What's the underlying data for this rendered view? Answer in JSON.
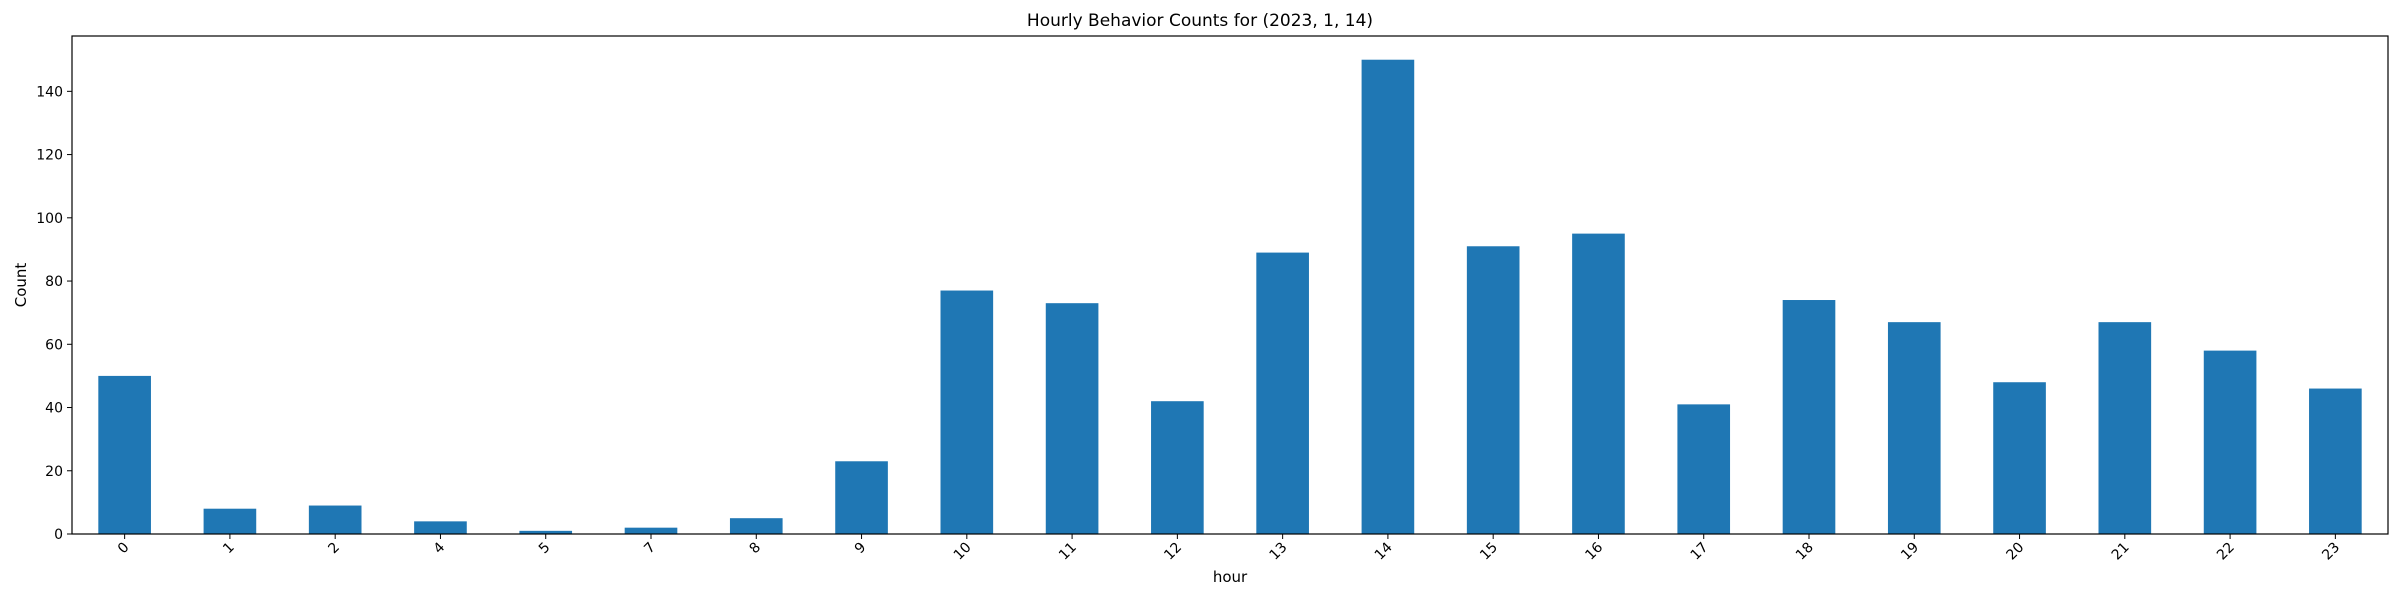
{
  "chart_data": {
    "type": "bar",
    "title": "Hourly Behavior Counts for (2023, 1, 14)",
    "xlabel": "hour",
    "ylabel": "Count",
    "categories": [
      "0",
      "1",
      "2",
      "4",
      "5",
      "7",
      "8",
      "9",
      "10",
      "11",
      "12",
      "13",
      "14",
      "15",
      "16",
      "17",
      "18",
      "19",
      "20",
      "21",
      "22",
      "23"
    ],
    "values": [
      50,
      8,
      9,
      4,
      1,
      2,
      5,
      23,
      77,
      73,
      42,
      89,
      150,
      91,
      95,
      41,
      74,
      67,
      48,
      67,
      58,
      46
    ],
    "ylim": [
      0,
      157.5
    ],
    "yticks": [
      0,
      20,
      40,
      60,
      80,
      100,
      120,
      140
    ],
    "grid": false,
    "legend": "none",
    "bar_color": "#1f77b4",
    "xtick_rotation": 45
  }
}
